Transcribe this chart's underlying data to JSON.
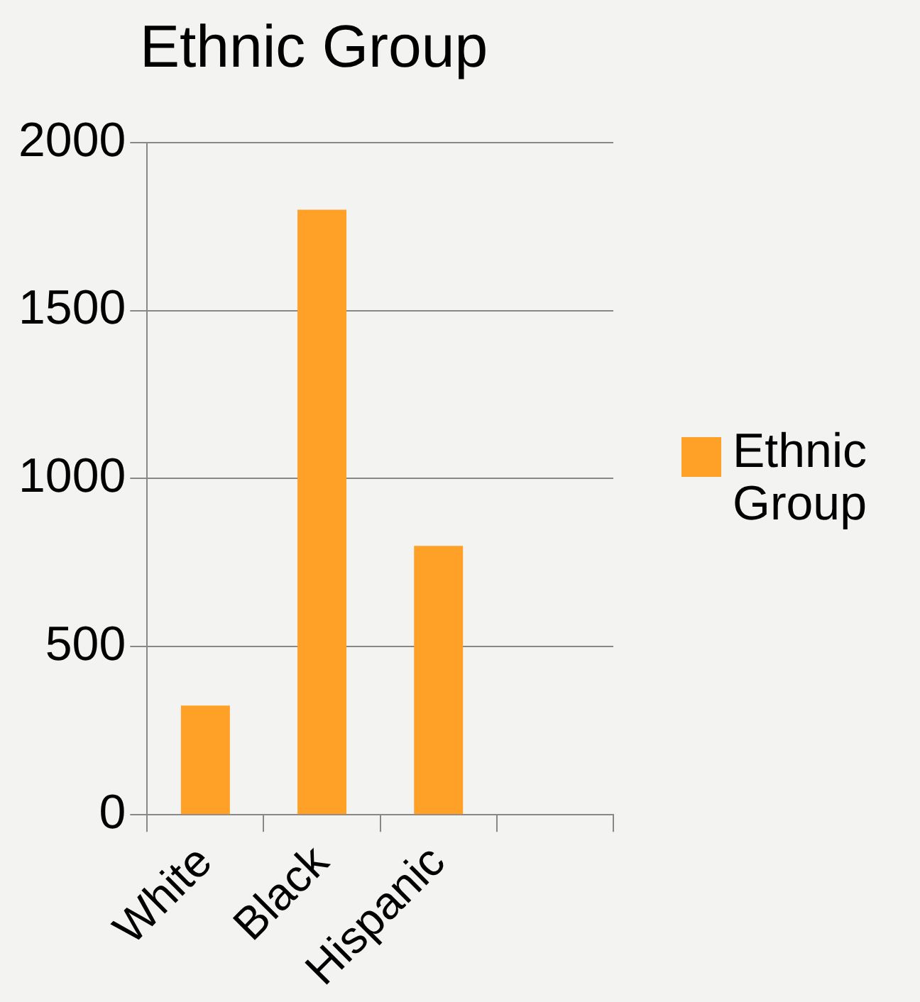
{
  "chart_data": {
    "type": "bar",
    "title": "Ethnic Group",
    "categories": [
      "White",
      "Black",
      "Hispanic",
      null
    ],
    "series": [
      {
        "name": "Ethnic Group",
        "color": "#ffa126",
        "values": [
          325,
          1800,
          800,
          null
        ]
      }
    ],
    "ylim": [
      0,
      2000
    ],
    "yticks": [
      0,
      500,
      1000,
      1500,
      2000
    ],
    "grid": "y",
    "legend": "right"
  }
}
